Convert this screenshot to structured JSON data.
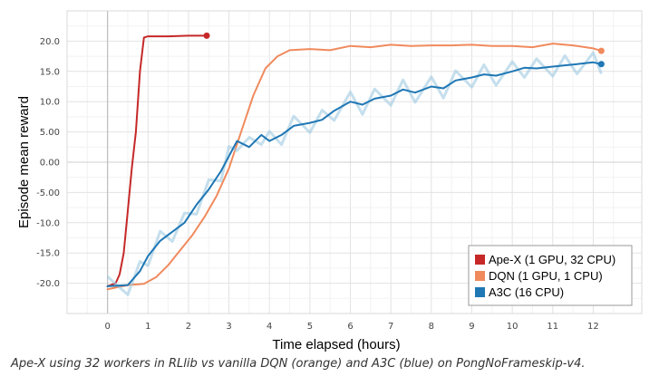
{
  "chart_data": {
    "type": "line",
    "title": "",
    "xlabel": "Time elapsed (hours)",
    "ylabel": "Episode mean reward",
    "xlim": [
      -1.0,
      13.2
    ],
    "ylim": [
      -25.0,
      25.0
    ],
    "x_ticks": [
      "0",
      "1",
      "2",
      "3",
      "4",
      "5",
      "6",
      "7",
      "8",
      "9",
      "10",
      "11",
      "12"
    ],
    "y_ticks": [
      "20.0",
      "15.0",
      "10.0",
      "5.00",
      "0.00",
      "-5.00",
      "-10.0",
      "-15.0",
      "-20.0"
    ],
    "grid": true,
    "legend_position": "bottom-right",
    "series": [
      {
        "name": "Ape-X (1 GPU, 32 CPU)",
        "color": "#c62828",
        "x": [
          0.0,
          0.2,
          0.3,
          0.4,
          0.5,
          0.6,
          0.7,
          0.8,
          0.9,
          1.0,
          1.2,
          1.5,
          2.0,
          2.45
        ],
        "y": [
          -20.5,
          -20.0,
          -18.5,
          -15.0,
          -8.0,
          -1.0,
          5.0,
          15.0,
          20.6,
          20.8,
          20.8,
          20.8,
          20.9,
          20.9
        ]
      },
      {
        "name": "DQN (1 GPU, 1 CPU)",
        "color": "#f08a5d",
        "x": [
          0.0,
          0.5,
          0.9,
          1.2,
          1.5,
          1.8,
          2.1,
          2.4,
          2.7,
          3.0,
          3.3,
          3.6,
          3.9,
          4.2,
          4.5,
          5.0,
          5.5,
          6.0,
          6.5,
          7.0,
          7.5,
          8.0,
          8.5,
          9.0,
          9.5,
          10.0,
          10.5,
          11.0,
          11.5,
          12.0,
          12.2
        ],
        "y": [
          -21.0,
          -20.3,
          -20.1,
          -19.0,
          -17.0,
          -14.5,
          -12.0,
          -9.0,
          -5.5,
          -1.0,
          5.0,
          11.0,
          15.5,
          17.5,
          18.5,
          18.7,
          18.5,
          19.2,
          19.0,
          19.4,
          19.2,
          19.3,
          19.3,
          19.4,
          19.2,
          19.2,
          19.0,
          19.6,
          19.3,
          18.8,
          18.4
        ]
      },
      {
        "name": "A3C (16 CPU)",
        "color": "#1f77b4",
        "x": [
          0.0,
          0.5,
          0.8,
          1.0,
          1.3,
          1.6,
          1.9,
          2.2,
          2.5,
          2.8,
          3.0,
          3.2,
          3.5,
          3.8,
          4.0,
          4.3,
          4.6,
          5.0,
          5.3,
          5.6,
          6.0,
          6.3,
          6.6,
          7.0,
          7.3,
          7.6,
          8.0,
          8.3,
          8.6,
          9.0,
          9.3,
          9.6,
          10.0,
          10.3,
          10.6,
          11.0,
          11.3,
          11.6,
          12.0,
          12.2
        ],
        "y": [
          -20.5,
          -20.3,
          -18.0,
          -15.5,
          -13.0,
          -11.5,
          -10.0,
          -7.0,
          -4.5,
          -1.5,
          1.0,
          3.5,
          2.5,
          4.5,
          3.5,
          4.5,
          6.0,
          6.5,
          7.0,
          8.5,
          10.0,
          9.5,
          10.5,
          11.0,
          12.0,
          11.5,
          12.5,
          12.2,
          13.5,
          14.0,
          14.5,
          14.3,
          15.0,
          15.6,
          15.5,
          15.8,
          16.0,
          16.2,
          16.5,
          16.2
        ]
      }
    ]
  },
  "caption": "Ape-X using 32 workers in RLlib vs vanilla DQN (orange) and A3C (blue) on PongNoFrameskip-v4."
}
